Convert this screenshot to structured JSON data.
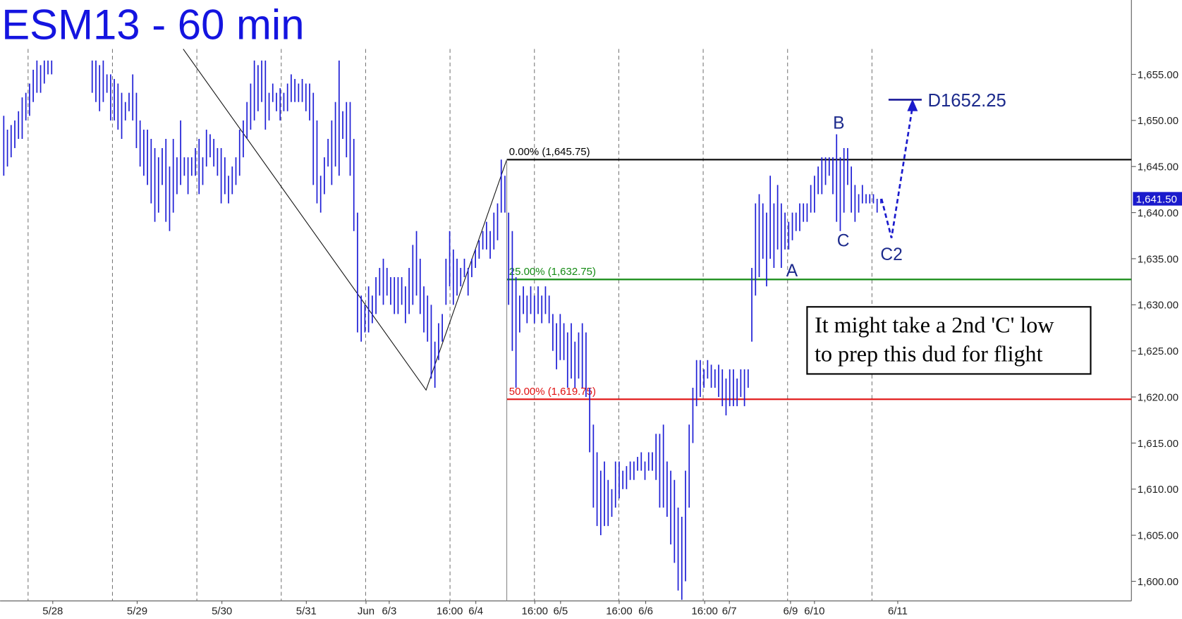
{
  "chart_data": {
    "type": "ohlc",
    "title": "ESM13 - 60 min",
    "xlim": [
      0,
      307
    ],
    "ylim": [
      1597.875,
      1657.75
    ],
    "yticks": [
      {
        "value": 1600,
        "label": "1,600.00"
      },
      {
        "value": 1605,
        "label": "1,605.00"
      },
      {
        "value": 1610,
        "label": "1,610.00"
      },
      {
        "value": 1615,
        "label": "1,615.00"
      },
      {
        "value": 1620,
        "label": "1,620.00"
      },
      {
        "value": 1625,
        "label": "1,625.00"
      },
      {
        "value": 1630,
        "label": "1,630.00"
      },
      {
        "value": 1635,
        "label": "1,635.00"
      },
      {
        "value": 1640,
        "label": "1,640.00"
      },
      {
        "value": 1645,
        "label": "1,645.00"
      },
      {
        "value": 1650,
        "label": "1,650.00"
      },
      {
        "value": 1655,
        "label": "1,655.00"
      }
    ],
    "xgrid": [
      7.6,
      30.5,
      53.4,
      76.3,
      99.2,
      122.1,
      145,
      167.9,
      190.8,
      213.7,
      236.6
    ],
    "xticks": [
      {
        "value": 14.3,
        "label": "5/28"
      },
      {
        "value": 37.2,
        "label": "5/29"
      },
      {
        "value": 60.2,
        "label": "5/30"
      },
      {
        "value": 83.1,
        "label": "5/31"
      },
      {
        "value": 99.3,
        "label": "Jun"
      },
      {
        "value": 105.6,
        "label": "6/3"
      },
      {
        "value": 122,
        "label": "16:00"
      },
      {
        "value": 129.1,
        "label": "6/4"
      },
      {
        "value": 145.1,
        "label": "16:00"
      },
      {
        "value": 152.1,
        "label": "6/5"
      },
      {
        "value": 168,
        "label": "16:00"
      },
      {
        "value": 175.2,
        "label": "6/6"
      },
      {
        "value": 191.2,
        "label": "16:00"
      },
      {
        "value": 197.9,
        "label": "6/7"
      },
      {
        "value": 214.5,
        "label": "6/9"
      },
      {
        "value": 221,
        "label": "6/10"
      },
      {
        "value": 243.6,
        "label": "6/11"
      }
    ],
    "series": [
      {
        "color": "#1f1fd6",
        "x": [
          1,
          2,
          3,
          4,
          5,
          6,
          7,
          8,
          9,
          10,
          11,
          12,
          13,
          14,
          25,
          26,
          27,
          28,
          29,
          30,
          31,
          32,
          33,
          34,
          35,
          36,
          37,
          38,
          39,
          40,
          41,
          42,
          43,
          44,
          45,
          46,
          47,
          48,
          49,
          50,
          51,
          52,
          53,
          54,
          55,
          56,
          57,
          58,
          59,
          60,
          61,
          62,
          63,
          64,
          65,
          66,
          67,
          68,
          69,
          70,
          71,
          72,
          73,
          74,
          75,
          76,
          77,
          78,
          79,
          80,
          81,
          82,
          83,
          84,
          85,
          86,
          87,
          88,
          89,
          90,
          91,
          92,
          93,
          94,
          95,
          96,
          97,
          98,
          99,
          100,
          101,
          102,
          103,
          104,
          105,
          106,
          107,
          108,
          109,
          110,
          111,
          112,
          113,
          114,
          115,
          116,
          117,
          118,
          119,
          120,
          121,
          122,
          123,
          124,
          125,
          126,
          127,
          128,
          129,
          130,
          131,
          132,
          133,
          134,
          135,
          136,
          137,
          138,
          139,
          140,
          141,
          142,
          143,
          144,
          145,
          146,
          147,
          148,
          149,
          150,
          151,
          152,
          153,
          154,
          155,
          156,
          157,
          158,
          159,
          160,
          161,
          162,
          163,
          164,
          165,
          166,
          167,
          168,
          169,
          170,
          171,
          172,
          173,
          174,
          175,
          176,
          177,
          178,
          179,
          180,
          181,
          182,
          183,
          184,
          185,
          186,
          187,
          188,
          189,
          190,
          191,
          192,
          193,
          194,
          195,
          196,
          197,
          198,
          199,
          200,
          201,
          202,
          203,
          204,
          205,
          206,
          207,
          208,
          209,
          210,
          211,
          212,
          213,
          214,
          215,
          216,
          217,
          218,
          219,
          220,
          221,
          222,
          223,
          224,
          225,
          226,
          227,
          228,
          229,
          230,
          231,
          232,
          233,
          234,
          235,
          236,
          237,
          238,
          239
        ],
        "high": [
          1650.5,
          1649,
          1649.5,
          1650,
          1651,
          1652.5,
          1653,
          1654,
          1655.5,
          1656.5,
          1656,
          1656.5,
          1656.5,
          1656.5,
          1656.5,
          1656.5,
          1656,
          1656.5,
          1655,
          1655,
          1654.5,
          1654,
          1653,
          1652,
          1653,
          1655,
          1653,
          1650,
          1649,
          1649,
          1648,
          1647,
          1646,
          1647,
          1648,
          1645,
          1648,
          1646,
          1650,
          1646,
          1646,
          1646,
          1647,
          1648,
          1646,
          1649,
          1648.5,
          1648,
          1647,
          1647,
          1646,
          1644,
          1645,
          1646,
          1649,
          1650,
          1652,
          1654,
          1656.5,
          1656,
          1656.5,
          1656.5,
          1653,
          1654,
          1653,
          1653.5,
          1653,
          1654,
          1655,
          1654.5,
          1654,
          1654.5,
          1654,
          1654,
          1653,
          1650,
          1644,
          1646,
          1648,
          1650,
          1652,
          1656.5,
          1651,
          1652,
          1652,
          1648,
          1640,
          1631,
          1630,
          1632,
          1631,
          1633,
          1634,
          1635,
          1634,
          1633,
          1633,
          1633,
          1633,
          1632,
          1634,
          1636.5,
          1638,
          1635,
          1632,
          1631,
          1630,
          1626,
          1628,
          1629,
          1635,
          1638,
          1636,
          1635,
          1634,
          1635,
          1634,
          1635,
          1636,
          1637,
          1638,
          1639,
          1638,
          1640,
          1641,
          1645.75,
          1644,
          1640,
          1638,
          1633,
          1631,
          1632,
          1631,
          1632,
          1631,
          1632,
          1631,
          1632,
          1631,
          1629,
          1628,
          1629,
          1628,
          1627,
          1628,
          1626,
          1627,
          1628,
          1627,
          1621,
          1617,
          1614,
          1612,
          1613,
          1611,
          1610,
          1613,
          1613,
          1612,
          1612.5,
          1613,
          1613,
          1613.5,
          1614,
          1613,
          1614,
          1614,
          1616,
          1616,
          1617,
          1613,
          1612,
          1611,
          1608,
          1607,
          1612,
          1617,
          1621,
          1624,
          1624,
          1623,
          1624,
          1623.5,
          1623,
          1623.5,
          1623,
          1622,
          1623,
          1623,
          1622,
          1623,
          1623,
          1623,
          1634,
          1641,
          1642,
          1641,
          1640,
          1644,
          1641,
          1643,
          1641,
          1640,
          1639,
          1640,
          1640,
          1641,
          1641,
          1641,
          1643,
          1644,
          1645,
          1646,
          1646,
          1646,
          1646,
          1648.5,
          1646,
          1647,
          1647,
          1645,
          1643,
          1642,
          1643,
          1642,
          1642,
          1642,
          1641.5,
          1641.5
        ],
        "low": [
          1644,
          1645,
          1646,
          1647,
          1648,
          1648,
          1650,
          1650.5,
          1652,
          1653,
          1653,
          1654,
          1655,
          1655,
          1653,
          1652,
          1651,
          1652,
          1653,
          1650,
          1650,
          1649,
          1648,
          1650,
          1651,
          1650,
          1647,
          1645,
          1644,
          1643,
          1641,
          1639,
          1640,
          1643,
          1639,
          1638,
          1640,
          1642,
          1643,
          1644,
          1642,
          1644,
          1644,
          1642,
          1643,
          1645,
          1646,
          1645,
          1644,
          1641,
          1642,
          1641,
          1642,
          1643,
          1644,
          1646,
          1648,
          1649,
          1650,
          1651,
          1652,
          1649,
          1650,
          1652,
          1651,
          1650,
          1651,
          1651,
          1652,
          1652,
          1652,
          1652,
          1651,
          1650,
          1643,
          1641,
          1640,
          1642,
          1645,
          1643,
          1645,
          1644,
          1648,
          1646,
          1644,
          1638,
          1627,
          1626,
          1627,
          1627,
          1628,
          1629,
          1631,
          1630,
          1631,
          1630,
          1629,
          1629,
          1630,
          1628,
          1629,
          1630,
          1631,
          1629,
          1627,
          1626,
          1622,
          1621,
          1624,
          1626,
          1630,
          1632,
          1630,
          1631,
          1632,
          1633,
          1631,
          1633,
          1634,
          1635,
          1636,
          1636,
          1635,
          1636,
          1637,
          1640,
          1640,
          1630,
          1625,
          1621,
          1627,
          1629,
          1628,
          1629,
          1628,
          1629,
          1628,
          1629,
          1628,
          1625,
          1623,
          1624,
          1624,
          1621,
          1622,
          1621,
          1622,
          1621,
          1620,
          1614,
          1608,
          1606,
          1605,
          1606,
          1606,
          1607,
          1608,
          1609,
          1610,
          1610,
          1611,
          1611,
          1612,
          1612,
          1611,
          1612,
          1612,
          1611,
          1608,
          1608,
          1607,
          1604,
          1602,
          1599,
          1598,
          1600,
          1608,
          1615,
          1619,
          1620,
          1621,
          1622,
          1621,
          1621,
          1620,
          1619,
          1618,
          1619,
          1619,
          1619,
          1620,
          1619,
          1621,
          1626,
          1631,
          1633,
          1635,
          1632,
          1635,
          1634,
          1636,
          1634,
          1636,
          1636,
          1637,
          1638,
          1638,
          1639,
          1639,
          1640,
          1640,
          1642,
          1642,
          1643,
          1644,
          1642,
          1639,
          1638,
          1640,
          1643,
          1640,
          1639,
          1640,
          1641,
          1641,
          1641,
          1641,
          1640,
          1641
        ]
      }
    ],
    "fib_levels": [
      {
        "value": 1645.75,
        "label": "0.00% (1,645.75)",
        "color": "#000000"
      },
      {
        "value": 1632.75,
        "label": "25.00% (1,632.75)",
        "color": "#138a13"
      },
      {
        "value": 1619.75,
        "label": "50.00% (1,619.75)",
        "color": "#e01010"
      }
    ],
    "fib_start": 137.5,
    "zigzag": {
      "x": [
        49.7,
        115.6,
        137.5
      ],
      "y": [
        1657.75,
        1620.75,
        1645.75
      ]
    },
    "waves": [
      {
        "label": "A",
        "x": 214.9,
        "y": 1633.75
      },
      {
        "label": "B",
        "x": 227.6,
        "y": 1649.75
      },
      {
        "label": "C",
        "x": 228.8,
        "y": 1637
      },
      {
        "label": "C2",
        "x": 241.9,
        "y": 1635.5
      }
    ],
    "projection": {
      "x": [
        239.2,
        241.9,
        247.6
      ],
      "y": [
        1641.5,
        1637.25,
        1651.5
      ]
    },
    "target": {
      "value": 1652.25,
      "label": "D1652.25",
      "x": [
        241.1,
        250.1
      ]
    },
    "last_price": {
      "value": 1641.5,
      "label": "1,641.50"
    },
    "note": [
      "It might take a 2nd 'C' low",
      "to prep this dud for flight"
    ]
  }
}
